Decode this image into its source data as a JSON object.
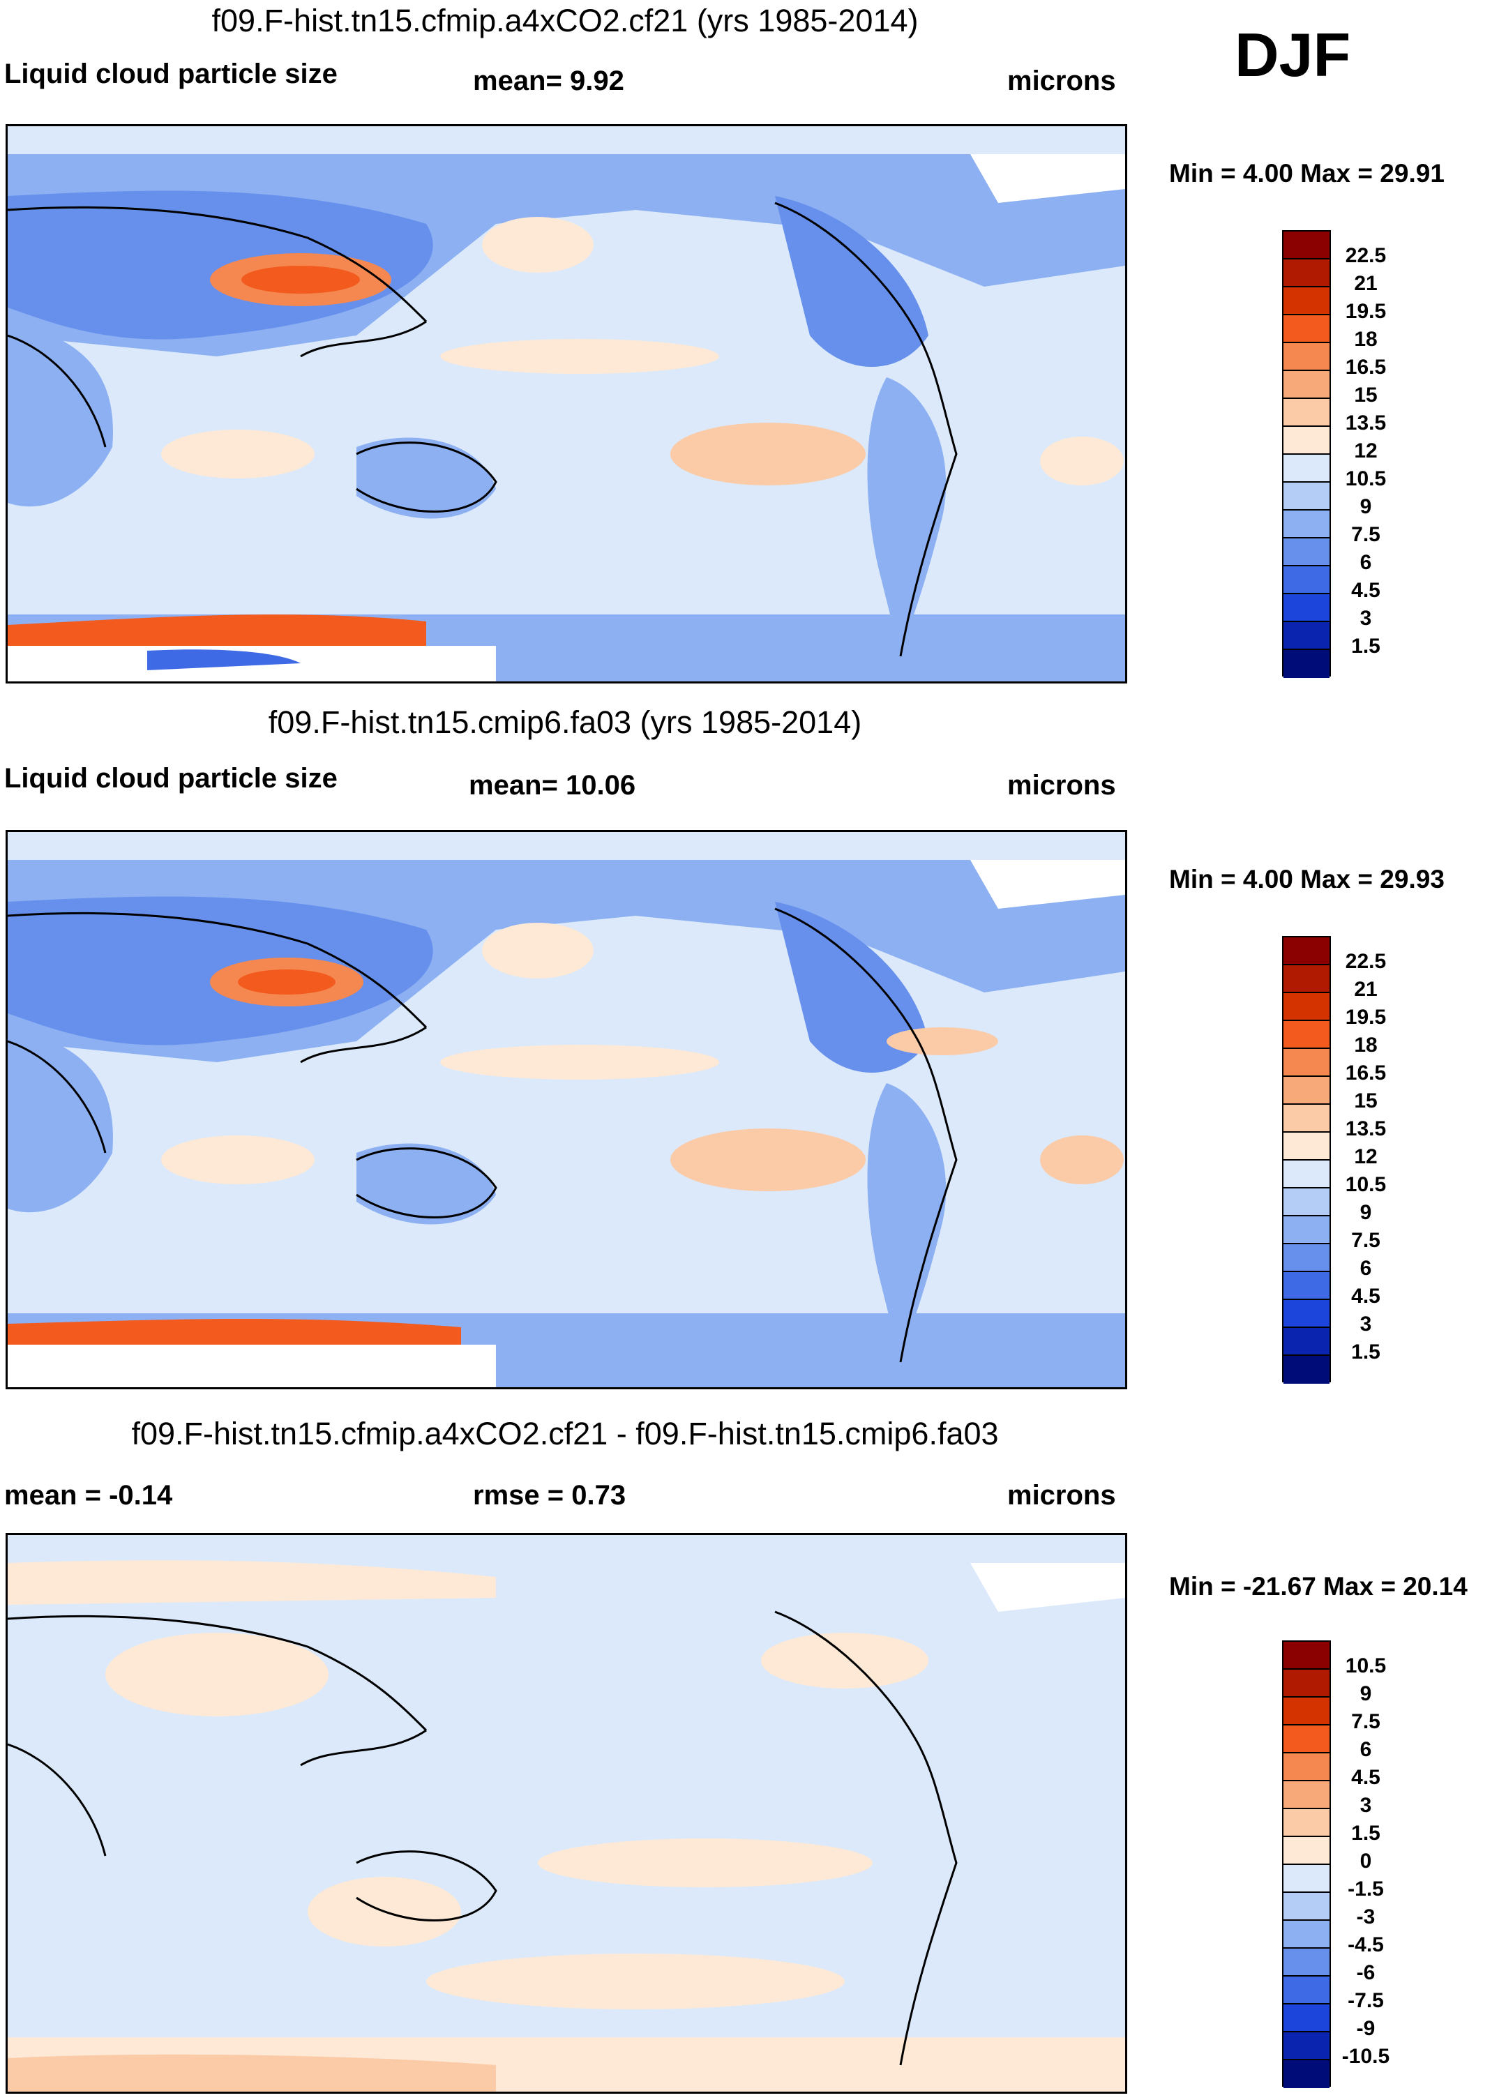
{
  "season": "DJF",
  "panels": [
    {
      "title": "f09.F-hist.tn15.cfmip.a4xCO2.cf21 (yrs 1985-2014)",
      "left_label": "Liquid cloud particle size",
      "center_label": "mean=   9.92",
      "right_label": "microns",
      "minmax": "Min =   4.00 Max =  29.91",
      "colorbar_labels": [
        "22.5",
        "21",
        "19.5",
        "18",
        "16.5",
        "15",
        "13.5",
        "12",
        "10.5",
        "9",
        "7.5",
        "6",
        "4.5",
        "3",
        "1.5"
      ],
      "colorbar_colors": [
        "#8b0000",
        "#b01a00",
        "#d43300",
        "#f25a1e",
        "#f58850",
        "#f7a97a",
        "#fbcba8",
        "#fde9d6",
        "#dbe9fa",
        "#b3cdf7",
        "#8cb0f2",
        "#6690ec",
        "#3e6ae6",
        "#1c45dc",
        "#0a24b0",
        "#000d78"
      ]
    },
    {
      "title": "f09.F-hist.tn15.cmip6.fa03 (yrs 1985-2014)",
      "left_label": "Liquid cloud particle size",
      "center_label": "mean=  10.06",
      "right_label": "microns",
      "minmax": "Min =   4.00 Max =  29.93",
      "colorbar_labels": [
        "22.5",
        "21",
        "19.5",
        "18",
        "16.5",
        "15",
        "13.5",
        "12",
        "10.5",
        "9",
        "7.5",
        "6",
        "4.5",
        "3",
        "1.5"
      ],
      "colorbar_colors": [
        "#8b0000",
        "#b01a00",
        "#d43300",
        "#f25a1e",
        "#f58850",
        "#f7a97a",
        "#fbcba8",
        "#fde9d6",
        "#dbe9fa",
        "#b3cdf7",
        "#8cb0f2",
        "#6690ec",
        "#3e6ae6",
        "#1c45dc",
        "#0a24b0",
        "#000d78"
      ]
    },
    {
      "title": "f09.F-hist.tn15.cfmip.a4xCO2.cf21 - f09.F-hist.tn15.cmip6.fa03",
      "left_label": "mean =  -0.14",
      "center_label": "rmse =   0.73",
      "right_label": "microns",
      "minmax": "Min = -21.67 Max =  20.14",
      "colorbar_labels": [
        "10.5",
        "9",
        "7.5",
        "6",
        "4.5",
        "3",
        "1.5",
        "0",
        "-1.5",
        "-3",
        "-4.5",
        "-6",
        "-7.5",
        "-9",
        "-10.5"
      ],
      "colorbar_colors": [
        "#8b0000",
        "#b01a00",
        "#d43300",
        "#f25a1e",
        "#f58850",
        "#f7a97a",
        "#fbcba8",
        "#fde9d6",
        "#dbe9fa",
        "#b3cdf7",
        "#8cb0f2",
        "#6690ec",
        "#3e6ae6",
        "#1c45dc",
        "#0a24b0",
        "#000d78"
      ]
    }
  ]
}
